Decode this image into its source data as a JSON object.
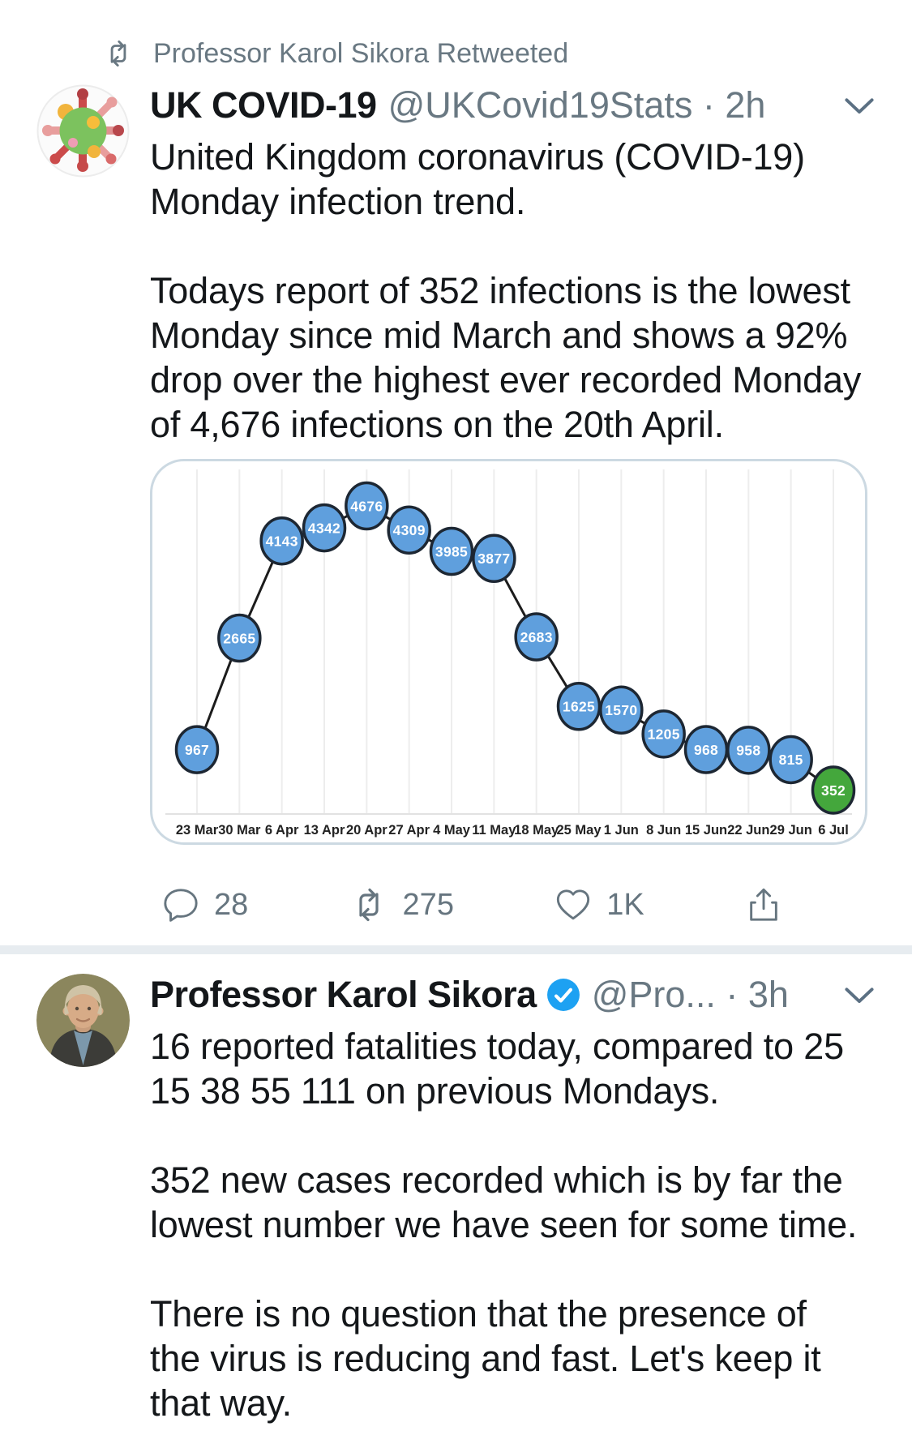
{
  "retweet_banner": {
    "text": "Professor Karol Sikora Retweeted"
  },
  "tweet1": {
    "name": "UK COVID-19",
    "meta": "@UKCovid19Stats · 2h",
    "paragraphs": [
      [
        "United Kingdom coronavirus (COVID-19)",
        "Monday infection trend."
      ],
      [
        "Todays report of 352 infections is the lowest",
        "Monday since mid March and shows a 92%",
        "drop over the highest ever recorded Monday",
        "of 4,676 infections on the 20th April."
      ]
    ],
    "engagement": {
      "replies": "28",
      "retweets": "275",
      "likes": "1K"
    }
  },
  "chart_data": {
    "type": "line",
    "x_labels": [
      "23 Mar",
      "30 Mar",
      "6 Apr",
      "13 Apr",
      "20 Apr",
      "27 Apr",
      "4 May",
      "11 May",
      "18 May",
      "25 May",
      "1 Jun",
      "8 Jun",
      "15 Jun",
      "22 Jun",
      "29 Jun",
      "6 Jul"
    ],
    "values": [
      967,
      2665,
      4143,
      4342,
      4676,
      4309,
      3985,
      3877,
      2683,
      1625,
      1570,
      1205,
      968,
      958,
      815,
      352
    ],
    "ylim": [
      0,
      4900
    ],
    "grid": "vertical-light",
    "legend": "none",
    "point_fill": "#5f9fdd",
    "last_point_fill": "#44a73c",
    "point_stroke": "#1d2733",
    "line_color": "#1c1c1c",
    "point_label_color": "#ffffff",
    "axis_label_color": "#222222"
  },
  "tweet2": {
    "name": "Professor Karol Sikora",
    "meta": "@Pro...  · 3h",
    "paragraphs": [
      [
        "16 reported fatalities today, compared to 25",
        "15 38 55 111 on previous Mondays."
      ],
      [
        "352 new cases recorded which is by far the",
        "lowest number we have seen for some time."
      ],
      [
        "There is no question that the presence of",
        "the virus is reducing and fast. Let's keep it",
        "that way."
      ]
    ]
  }
}
